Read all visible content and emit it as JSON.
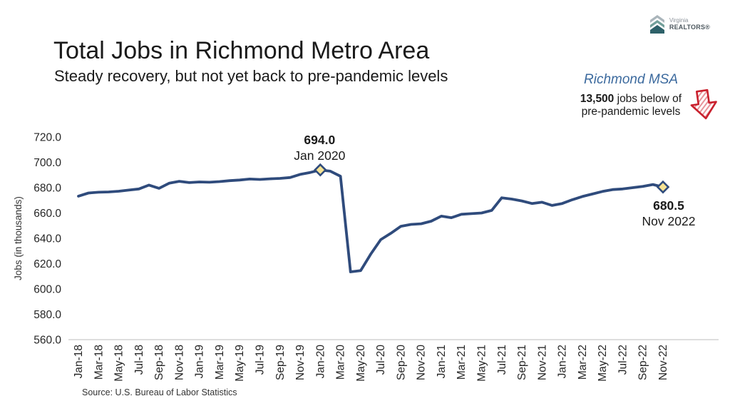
{
  "header": {
    "title": "Total Jobs in Richmond Metro Area",
    "subtitle": "Steady recovery, but not yet back to pre-pandemic levels"
  },
  "logo": {
    "brand_top": "Virginia",
    "brand_bottom": "REALTORS®",
    "icon": "house-chevron-icon",
    "colors": {
      "roof_light": "#aab5bb",
      "roof_mid": "#73a09a",
      "house_dark": "#2e6169"
    }
  },
  "callout": {
    "heading": "Richmond MSA",
    "stat_value": "13,500",
    "stat_rest": " jobs below of",
    "line2": "pre-pandemic levels",
    "arrow_icon": "hatched-down-arrow-icon",
    "heading_color": "#3c6a9e",
    "arrow_color": "#c9202d"
  },
  "source": "Source: U.S. Bureau of Labor Statistics",
  "chart_data": {
    "type": "line",
    "title": "Total Jobs in Richmond Metro Area",
    "xlabel": "",
    "ylabel": "Jobs (in thousands)",
    "ylim": [
      560,
      720
    ],
    "ytick_step": 20,
    "x_label_every": 2,
    "grid": false,
    "legend": false,
    "line_color": "#2f4b7c",
    "marker_fill": "#f6e394",
    "axis_line_color": "#d9d9d9",
    "x": [
      "Jan-18",
      "Feb-18",
      "Mar-18",
      "Apr-18",
      "May-18",
      "Jun-18",
      "Jul-18",
      "Aug-18",
      "Sep-18",
      "Oct-18",
      "Nov-18",
      "Dec-18",
      "Jan-19",
      "Feb-19",
      "Mar-19",
      "Apr-19",
      "May-19",
      "Jun-19",
      "Jul-19",
      "Aug-19",
      "Sep-19",
      "Oct-19",
      "Nov-19",
      "Dec-19",
      "Jan-20",
      "Feb-20",
      "Mar-20",
      "Apr-20",
      "May-20",
      "Jun-20",
      "Jul-20",
      "Aug-20",
      "Sep-20",
      "Oct-20",
      "Nov-20",
      "Dec-20",
      "Jan-21",
      "Feb-21",
      "Mar-21",
      "Apr-21",
      "May-21",
      "Jun-21",
      "Jul-21",
      "Aug-21",
      "Sep-21",
      "Oct-21",
      "Nov-21",
      "Dec-21",
      "Jan-22",
      "Feb-22",
      "Mar-22",
      "Apr-22",
      "May-22",
      "Jun-22",
      "Jul-22",
      "Aug-22",
      "Sep-22",
      "Oct-22",
      "Nov-22"
    ],
    "values": [
      673.3,
      675.8,
      676.4,
      676.6,
      677.2,
      678.1,
      679.0,
      682.0,
      679.5,
      683.5,
      685.0,
      684.0,
      684.5,
      684.3,
      684.8,
      685.5,
      686.0,
      686.8,
      686.5,
      687.0,
      687.3,
      688.0,
      690.5,
      692.0,
      694.0,
      693.0,
      689.0,
      613.5,
      614.5,
      627.5,
      639.0,
      644.0,
      649.5,
      651.0,
      651.5,
      653.5,
      657.5,
      656.3,
      659.0,
      659.5,
      660.0,
      662.0,
      672.0,
      671.0,
      669.5,
      667.5,
      668.5,
      666.0,
      667.5,
      670.5,
      673.0,
      675.0,
      677.0,
      678.5,
      679.0,
      680.0,
      681.0,
      682.5,
      680.5
    ],
    "annotations": [
      {
        "x": "Jan-20",
        "value": 694.0,
        "label_value": "694.0",
        "label_date": "Jan 2020",
        "position": "above"
      },
      {
        "x": "Nov-22",
        "value": 680.5,
        "label_value": "680.5",
        "label_date": "Nov 2022",
        "position": "below"
      }
    ]
  }
}
